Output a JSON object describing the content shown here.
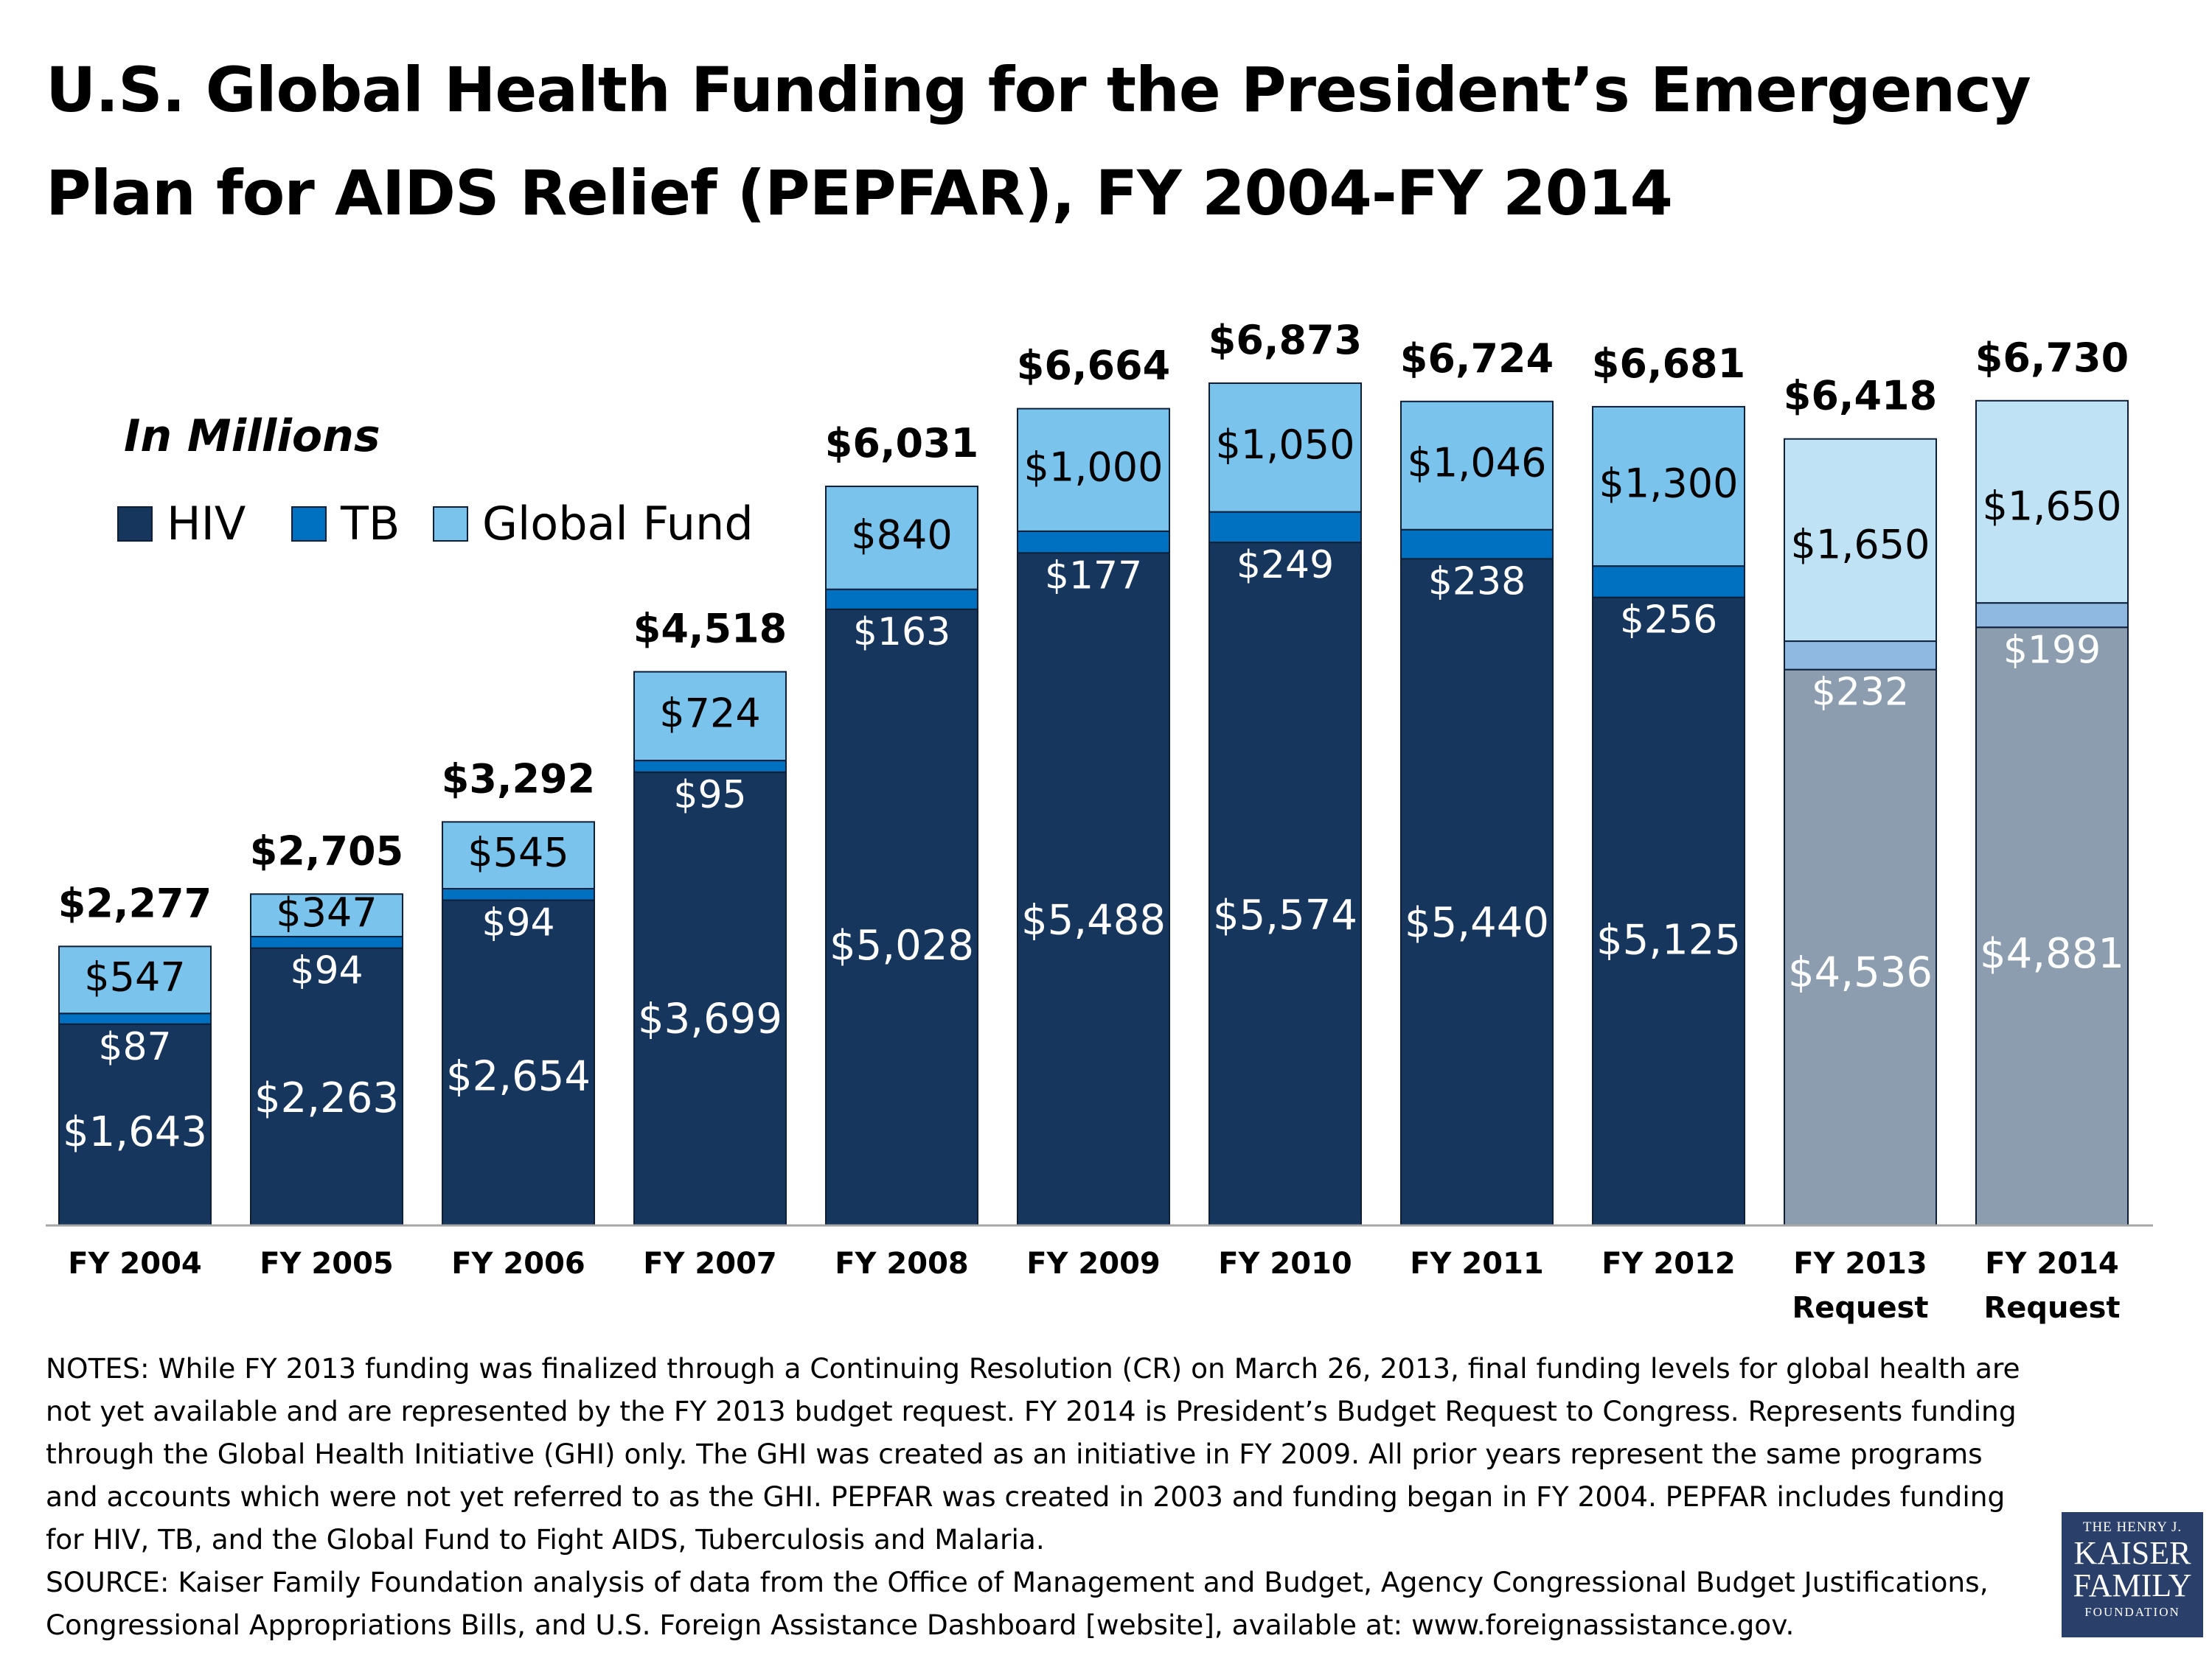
{
  "title_lines": [
    "U.S. Global Health Funding for the President’s Emergency",
    "Plan for AIDS Relief (PEPFAR), FY 2004-FY 2014"
  ],
  "unit_label": "In Millions",
  "notes": "NOTES: While FY 2013 funding was finalized through a Continuing Resolution (CR) on March 26, 2013, final funding levels for global health are not yet available and are represented by the FY 2013 budget request. FY 2014 is President’s Budget Request to Congress. Represents funding through the Global Health Initiative (GHI) only. The GHI was created as an initiative in FY 2009.  All prior years represent the same programs and accounts which were not yet referred to as the GHI.  PEPFAR was created in 2003 and funding began in FY 2004. PEPFAR includes funding for HIV, TB, and the Global Fund to Fight AIDS, Tuberculosis and Malaria.",
  "source": "SOURCE: Kaiser Family Foundation analysis of data from the Office of Management and Budget, Agency Congressional Budget Justifications, Congressional Appropriations Bills, and U.S. Foreign Assistance Dashboard [website], available at: www.foreignassistance.gov.",
  "logo": {
    "line1": "THE HENRY J.",
    "line2": "KAISER",
    "line3": "FAMILY",
    "line4": "FOUNDATION"
  },
  "colors": {
    "hiv": "#17365d",
    "tb": "#0070c0",
    "global_fund": "#7ac3ec",
    "request_hiv": "#8b9dae",
    "request_tb": "#8fb9e0",
    "request_global_fund": "#bfe2f5",
    "bar_outline": "#0d1f38",
    "axis": "#a6a6a6"
  },
  "chart_data": {
    "type": "bar",
    "stacked": true,
    "categories": [
      "FY 2004",
      "FY 2005",
      "FY 2006",
      "FY 2007",
      "FY 2008",
      "FY 2009",
      "FY 2010",
      "FY 2011",
      "FY 2012",
      "FY 2013 Request",
      "FY 2014 Request"
    ],
    "category_lines": [
      [
        "FY 2004"
      ],
      [
        "FY 2005"
      ],
      [
        "FY 2006"
      ],
      [
        "FY 2007"
      ],
      [
        "FY 2008"
      ],
      [
        "FY 2009"
      ],
      [
        "FY 2010"
      ],
      [
        "FY 2011"
      ],
      [
        "FY 2012"
      ],
      [
        "FY 2013",
        "Request"
      ],
      [
        "FY 2014",
        "Request"
      ]
    ],
    "request_categories": [
      "FY 2013 Request",
      "FY 2014 Request"
    ],
    "series": [
      {
        "name": "HIV",
        "values": [
          1643,
          2263,
          2654,
          3699,
          5028,
          5488,
          5574,
          5440,
          5125,
          4536,
          4881
        ]
      },
      {
        "name": "TB",
        "values": [
          87,
          94,
          94,
          95,
          163,
          177,
          249,
          238,
          256,
          232,
          199
        ]
      },
      {
        "name": "Global Fund",
        "values": [
          547,
          347,
          545,
          724,
          840,
          1000,
          1050,
          1046,
          1300,
          1650,
          1650
        ]
      }
    ],
    "series_labels": [
      [
        "$1,643",
        "$2,263",
        "$2,654",
        "$3,699",
        "$5,028",
        "$5,488",
        "$5,574",
        "$5,440",
        "$5,125",
        "$4,536",
        "$4,881"
      ],
      [
        "$87",
        "$94",
        "$94",
        "$95",
        "$163",
        "$177",
        "$249",
        "$238",
        "$256",
        "$232",
        "$199"
      ],
      [
        "$547",
        "$347",
        "$545",
        "$724",
        "$840",
        "$1,000",
        "$1,050",
        "$1,046",
        "$1,300",
        "$1,650",
        "$1,650"
      ]
    ],
    "totals": [
      2277,
      2705,
      3292,
      4518,
      6031,
      6664,
      6873,
      6724,
      6681,
      6418,
      6730
    ],
    "total_labels": [
      "$2,277",
      "$2,705",
      "$3,292",
      "$4,518",
      "$6,031",
      "$6,664",
      "$6,873",
      "$6,724",
      "$6,681",
      "$6,418",
      "$6,730"
    ],
    "ylim": [
      0,
      6873
    ],
    "grid": false,
    "legend_position": "top-left"
  }
}
